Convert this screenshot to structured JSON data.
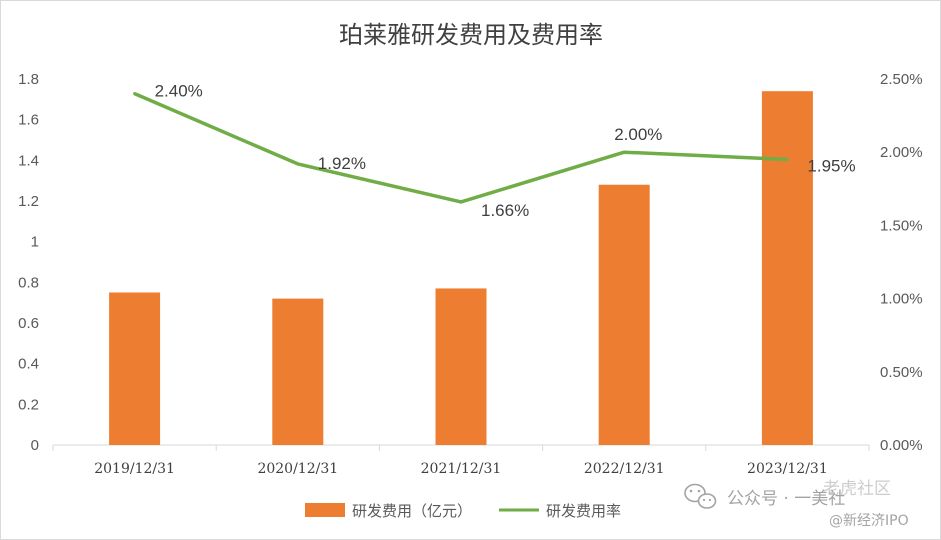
{
  "chart_data": {
    "type": "bar",
    "title": "珀莱雅研发费用及费用率",
    "categories": [
      "2019/12/31",
      "2020/12/31",
      "2021/12/31",
      "2022/12/31",
      "2023/12/31"
    ],
    "series": [
      {
        "name": "研发费用（亿元）",
        "type": "bar",
        "axis": "left",
        "color": "#ed7d31",
        "values": [
          0.75,
          0.72,
          0.77,
          1.28,
          1.74
        ]
      },
      {
        "name": "研发费用率",
        "type": "line",
        "axis": "right",
        "color": "#70ad47",
        "values": [
          0.024,
          0.0192,
          0.0166,
          0.02,
          0.0195
        ],
        "data_labels": [
          "2.40%",
          "1.92%",
          "1.66%",
          "2.00%",
          "1.95%"
        ]
      }
    ],
    "left_axis": {
      "min": 0,
      "max": 1.8,
      "ticks": [
        "0",
        "0.2",
        "0.4",
        "0.6",
        "0.8",
        "1",
        "1.2",
        "1.4",
        "1.6",
        "1.8"
      ]
    },
    "right_axis": {
      "min": 0,
      "max": 0.025,
      "ticks": [
        "0.00%",
        "0.50%",
        "1.00%",
        "1.50%",
        "2.00%",
        "2.50%"
      ]
    },
    "grid": false,
    "legend": "bottom"
  },
  "watermark": {
    "line1": "公众号 · 一美社",
    "line1_overlay": "老虎社区",
    "line2": "@新经济IPO",
    "icon": "wechat-icon"
  }
}
